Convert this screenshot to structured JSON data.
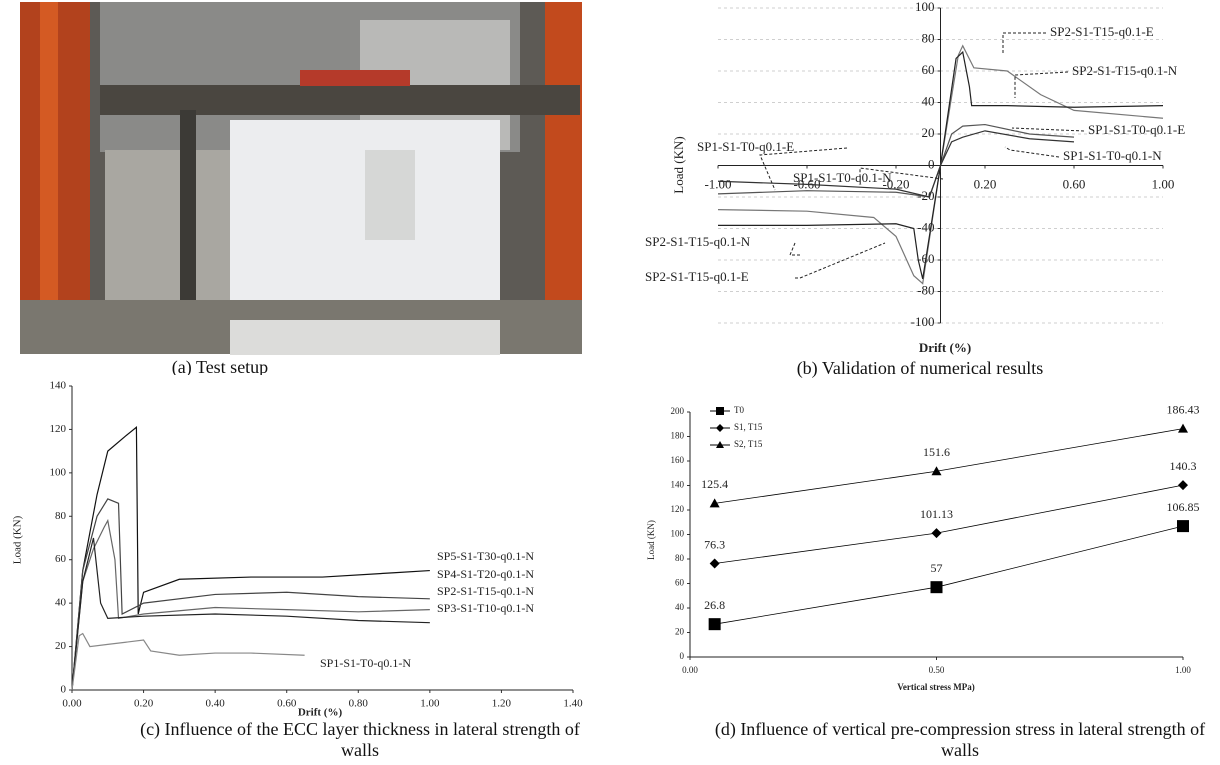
{
  "photo": {
    "caption": "(a)    Test setup"
  },
  "chart_data": [
    {
      "type": "line",
      "caption": "(b)    Validation of numerical results",
      "x_label": "Drift (%)",
      "y_label": "Load (KN)",
      "xlim": [
        -1,
        1
      ],
      "ylim": [
        -100,
        100
      ],
      "xticks": [
        {
          "value": -1,
          "label": "-1.00"
        },
        {
          "value": -0.6,
          "label": "-0.60"
        },
        {
          "value": -0.2,
          "label": "-0.20"
        },
        {
          "value": 0.2,
          "label": "0.20"
        },
        {
          "value": 0.6,
          "label": "0.60"
        },
        {
          "value": 1,
          "label": "1.00"
        }
      ],
      "yticks": [
        -100,
        -80,
        -60,
        -40,
        -20,
        0,
        20,
        40,
        60,
        80,
        100
      ],
      "grid": true,
      "series": [
        {
          "name": "SP2-S1-T15-q0.1-E",
          "color": "#777777",
          "x": [
            -1,
            -0.6,
            -0.3,
            -0.2,
            -0.12,
            -0.08,
            0,
            0.08,
            0.1,
            0.15,
            0.3,
            0.45,
            0.6,
            1
          ],
          "values": [
            -28,
            -29,
            -33,
            -45,
            -70,
            -75,
            0,
            70,
            76,
            62,
            60,
            45,
            35,
            30
          ]
        },
        {
          "name": "SP2-S1-T15-q0.1-N",
          "color": "#222222",
          "x": [
            -1,
            -0.6,
            -0.2,
            -0.12,
            -0.1,
            -0.08,
            0,
            0.07,
            0.1,
            0.13,
            0.14,
            0.3,
            0.6,
            1
          ],
          "values": [
            -38,
            -38,
            -37,
            -40,
            -60,
            -72,
            0,
            68,
            72,
            50,
            38,
            38,
            37,
            38
          ]
        },
        {
          "name": "SP1-S1-T0-q0.1-E",
          "color": "#555555",
          "x": [
            -1,
            -0.6,
            -0.2,
            -0.05,
            0,
            0.05,
            0.1,
            0.2,
            0.4,
            0.6
          ],
          "values": [
            -18,
            -16,
            -17,
            -20,
            0,
            20,
            25,
            26,
            20,
            18
          ]
        },
        {
          "name": "SP1-S1-T0-q0.1-N",
          "color": "#333333",
          "x": [
            -1,
            -0.6,
            -0.2,
            -0.05,
            0,
            0.05,
            0.1,
            0.2,
            0.4,
            0.6
          ],
          "values": [
            -10,
            -12,
            -15,
            -20,
            0,
            15,
            18,
            22,
            17,
            15
          ]
        }
      ]
    },
    {
      "type": "line",
      "caption": "(c)    Influence of the ECC layer thickness in lateral strength of walls",
      "x_label": "Drift (%)",
      "y_label": "Load (KN)",
      "xlim": [
        0,
        1.4
      ],
      "ylim": [
        0,
        140
      ],
      "xticks": [
        {
          "value": 0,
          "label": "0.00"
        },
        {
          "value": 0.2,
          "label": "0.20"
        },
        {
          "value": 0.4,
          "label": "0.40"
        },
        {
          "value": 0.6,
          "label": "0.60"
        },
        {
          "value": 0.8,
          "label": "0.80"
        },
        {
          "value": 1,
          "label": "1.00"
        },
        {
          "value": 1.2,
          "label": "1.20"
        },
        {
          "value": 1.4,
          "label": "1.40"
        }
      ],
      "yticks": [
        0,
        20,
        40,
        60,
        80,
        100,
        120,
        140
      ],
      "grid": false,
      "series": [
        {
          "name": "SP5-S1-T30-q0.1-N",
          "color": "#111111",
          "x": [
            0,
            0.03,
            0.07,
            0.1,
            0.15,
            0.18,
            0.185,
            0.2,
            0.3,
            0.5,
            0.7,
            0.9,
            1
          ],
          "values": [
            0,
            55,
            90,
            110,
            117,
            121,
            35,
            45,
            51,
            52,
            52,
            54,
            55
          ]
        },
        {
          "name": "SP4-S1-T20-q0.1-N",
          "color": "#444444",
          "x": [
            0,
            0.03,
            0.07,
            0.1,
            0.13,
            0.14,
            0.2,
            0.4,
            0.6,
            0.8,
            1
          ],
          "values": [
            0,
            55,
            80,
            88,
            86,
            35,
            40,
            44,
            45,
            43,
            42
          ]
        },
        {
          "name": "SP2-S1-T15-q0.1-N",
          "color": "#666666",
          "x": [
            0,
            0.03,
            0.06,
            0.09,
            0.1,
            0.12,
            0.13,
            0.2,
            0.4,
            0.6,
            0.8,
            1
          ],
          "values": [
            0,
            50,
            65,
            75,
            78,
            60,
            33,
            35,
            38,
            37,
            36,
            37
          ]
        },
        {
          "name": "SP3-S1-T10-q0.1-N",
          "color": "#222222",
          "x": [
            0,
            0.03,
            0.06,
            0.08,
            0.1,
            0.2,
            0.4,
            0.6,
            0.8,
            1
          ],
          "values": [
            0,
            50,
            70,
            40,
            33,
            34,
            35,
            34,
            32,
            31
          ]
        },
        {
          "name": "SP1-S1-T0-q0.1-N",
          "color": "#888888",
          "x": [
            0,
            0.02,
            0.03,
            0.05,
            0.1,
            0.15,
            0.2,
            0.22,
            0.3,
            0.4,
            0.5,
            0.65
          ],
          "values": [
            0,
            25,
            26,
            20,
            21,
            22,
            23,
            18,
            16,
            17,
            17,
            16
          ]
        }
      ]
    },
    {
      "type": "line",
      "caption": "(d)    Influence of vertical pre-compression stress in lateral strength of walls",
      "x_label": "Vertical stress MPa)",
      "y_label": "Load (KN)",
      "xlim": [
        0,
        1
      ],
      "ylim": [
        0,
        200
      ],
      "xticks": [
        {
          "value": 0,
          "label": "0.00"
        },
        {
          "value": 0.5,
          "label": "0.50"
        },
        {
          "value": 1,
          "label": "1.00"
        }
      ],
      "yticks": [
        0,
        20,
        40,
        60,
        80,
        100,
        120,
        140,
        160,
        180,
        200
      ],
      "grid": false,
      "legend": "upper left",
      "data_labels": true,
      "x": [
        0.05,
        0.5,
        1
      ],
      "series": [
        {
          "name": "T0",
          "color": "#000000",
          "marker": "square",
          "values": [
            26.8,
            57,
            106.85
          ]
        },
        {
          "name": "S1, T15",
          "color": "#000000",
          "marker": "diamond",
          "values": [
            76.3,
            101.13,
            140.3
          ]
        },
        {
          "name": "S2, T15",
          "color": "#000000",
          "marker": "triangle",
          "values": [
            125.4,
            151.6,
            186.43
          ]
        }
      ]
    }
  ]
}
